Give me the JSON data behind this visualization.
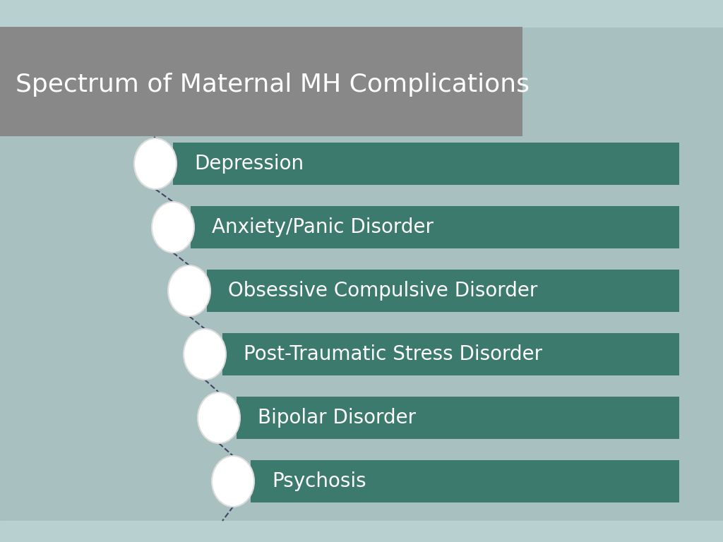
{
  "title": "Spectrum of Maternal MH Complications",
  "title_fontsize": 26,
  "title_color": "#ffffff",
  "title_bg_color": "#888888",
  "background_color": "#a8c0c0",
  "strip_color": "#b8d0d0",
  "bar_color": "#3d7a6e",
  "bar_text_color": "#ffffff",
  "bar_fontsize": 20,
  "circle_color": "#ffffff",
  "circle_edge_color": "#dddddd",
  "line_color": "#444466",
  "items": [
    "Depression",
    "Anxiety/Panic Disorder",
    "Obsessive Compulsive Disorder",
    "Post-Traumatic Stress Disorder",
    "Bipolar Disorder",
    "Psychosis"
  ],
  "figsize": [
    10.24,
    7.68
  ],
  "dpi": 100
}
